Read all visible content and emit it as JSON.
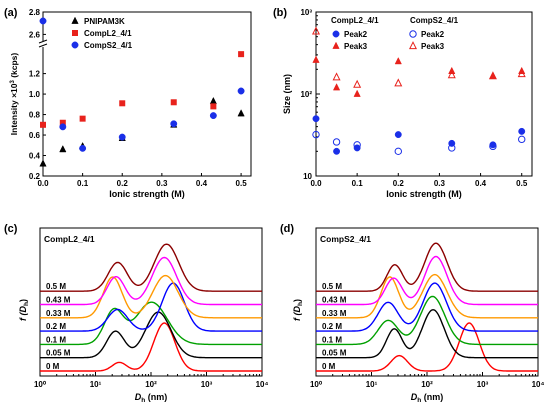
{
  "chart_data": [
    {
      "panel": "(a)",
      "type": "scatter",
      "xlabel": "Ionic strength (M)",
      "ylabel_main": "Intensity ×10",
      "ylabel_sup": "3",
      "ylabel_unit": " (kcps)",
      "x_ticks": [
        "0.0",
        "0.1",
        "0.2",
        "0.3",
        "0.4",
        "0.5"
      ],
      "x_tick_values": [
        0,
        0.1,
        0.2,
        0.3,
        0.4,
        0.5
      ],
      "y_ticks": [
        "0.2",
        "0.4",
        "0.6",
        "0.8",
        "1.0",
        "1.2",
        "2.6",
        "2.8"
      ],
      "xlim": [
        0,
        0.5
      ],
      "y_break": true,
      "legend_position": "top-left",
      "series": [
        {
          "name": "PNIPAM3K",
          "marker": "triangle",
          "color": "#000000",
          "x": [
            0,
            0.05,
            0.1,
            0.2,
            0.33,
            0.43,
            0.5
          ],
          "y": [
            0.32,
            0.46,
            0.49,
            0.57,
            0.7,
            0.93,
            0.81
          ]
        },
        {
          "name": "CompL2_4/1",
          "marker": "square",
          "color": "#e8221c",
          "x": [
            0,
            0.05,
            0.1,
            0.2,
            0.33,
            0.43,
            0.5
          ],
          "y": [
            0.7,
            0.72,
            0.76,
            0.91,
            0.92,
            0.88,
            1.39
          ]
        },
        {
          "name": "CompS2_4/1",
          "marker": "circle",
          "color": "#1a2fe8",
          "x": [
            0,
            0.05,
            0.1,
            0.2,
            0.33,
            0.43,
            0.5
          ],
          "y": [
            2.72,
            0.68,
            0.47,
            0.58,
            0.71,
            0.79,
            1.03
          ]
        }
      ]
    },
    {
      "panel": "(b)",
      "type": "scatter",
      "xlabel": "Ionic strength (M)",
      "ylabel": "Size (nm)",
      "y_scale": "log",
      "ylim": [
        10,
        1000
      ],
      "xlim": [
        0,
        0.5
      ],
      "x_ticks": [
        "0.0",
        "0.1",
        "0.2",
        "0.3",
        "0.4",
        "0.5"
      ],
      "y_ticks": [
        "10",
        "10²",
        "10³"
      ],
      "legend_position": "top-left",
      "legend_groups": [
        "CompL2_4/1",
        "CompS2_4/1"
      ],
      "series": [
        {
          "name": "Peak2",
          "group": "CompL2_4/1",
          "marker": "filled-circle",
          "color": "#1a2fe8",
          "x": [
            0,
            0.05,
            0.1,
            0.2,
            0.33,
            0.43,
            0.5
          ],
          "y": [
            50,
            20,
            22,
            32,
            25,
            24,
            35
          ]
        },
        {
          "name": "Peak3",
          "group": "CompL2_4/1",
          "marker": "filled-triangle",
          "color": "#e8221c",
          "x": [
            0,
            0.05,
            0.1,
            0.2,
            0.33,
            0.43,
            0.5
          ],
          "y": [
            260,
            120,
            100,
            250,
            190,
            165,
            190
          ]
        },
        {
          "name": "Peak2",
          "group": "CompS2_4/1",
          "marker": "open-circle",
          "color": "#1a2fe8",
          "x": [
            0,
            0.05,
            0.1,
            0.2,
            0.33,
            0.43,
            0.5
          ],
          "y": [
            32,
            26,
            24,
            20,
            22,
            23,
            28
          ]
        },
        {
          "name": "Peak3",
          "group": "CompS2_4/1",
          "marker": "open-triangle",
          "color": "#e8221c",
          "x": [
            0,
            0.05,
            0.1,
            0.2,
            0.33,
            0.43,
            0.5
          ],
          "y": [
            580,
            160,
            130,
            135,
            170,
            165,
            175
          ]
        }
      ]
    },
    {
      "panel": "(c)",
      "type": "line",
      "title": "CompL2_4/1",
      "xlabel_main": "D",
      "xlabel_sub": "h",
      "xlabel_unit": " (nm)",
      "ylabel_main": "f (D",
      "ylabel_sub": "h",
      "ylabel_close": ")",
      "x_scale": "log",
      "xlim": [
        1,
        10000
      ],
      "x_ticks": [
        "10⁰",
        "10¹",
        "10²",
        "10³",
        "10⁴"
      ],
      "series": [
        {
          "name": "0 M",
          "color": "#ff0000",
          "peaks": [
            {
              "center": 1.43,
              "width": 0.13,
              "height": 0.18
            },
            {
              "center": 2.24,
              "width": 0.19,
              "height": 1.0
            }
          ]
        },
        {
          "name": "0.05 M",
          "color": "#000000",
          "peaks": [
            {
              "center": 1.36,
              "width": 0.16,
              "height": 0.55
            },
            {
              "center": 2.13,
              "width": 0.23,
              "height": 0.95
            }
          ]
        },
        {
          "name": "0.1 M",
          "color": "#00a000",
          "peaks": [
            {
              "center": 1.33,
              "width": 0.17,
              "height": 0.7
            },
            {
              "center": 2.01,
              "width": 0.28,
              "height": 0.88
            }
          ]
        },
        {
          "name": "0.2 M",
          "color": "#0000ff",
          "peaks": [
            {
              "center": 1.4,
              "width": 0.18,
              "height": 0.45
            },
            {
              "center": 2.4,
              "width": 0.2,
              "height": 1.0
            }
          ]
        },
        {
          "name": "0.33 M",
          "color": "#ff9900",
          "peaks": [
            {
              "center": 1.31,
              "width": 0.17,
              "height": 0.85
            },
            {
              "center": 2.26,
              "width": 0.23,
              "height": 0.88
            }
          ]
        },
        {
          "name": "0.43 M",
          "color": "#ff00ff",
          "peaks": [
            {
              "center": 1.37,
              "width": 0.16,
              "height": 0.58
            },
            {
              "center": 2.24,
              "width": 0.22,
              "height": 0.98
            }
          ]
        },
        {
          "name": "0.5 M",
          "color": "#8b0000",
          "peaks": [
            {
              "center": 1.4,
              "width": 0.17,
              "height": 0.6
            },
            {
              "center": 2.28,
              "width": 0.22,
              "height": 0.98
            }
          ]
        }
      ]
    },
    {
      "panel": "(d)",
      "type": "line",
      "title": "CompS2_4/1",
      "xlabel_main": "D",
      "xlabel_sub": "h",
      "xlabel_unit": " (nm)",
      "ylabel_main": "f (D",
      "ylabel_sub": "h",
      "ylabel_close": ")",
      "x_scale": "log",
      "xlim": [
        1,
        10000
      ],
      "x_ticks": [
        "10⁰",
        "10¹",
        "10²",
        "10³",
        "10⁴"
      ],
      "series": [
        {
          "name": "0 M",
          "color": "#ff0000",
          "peaks": [
            {
              "center": 1.5,
              "width": 0.15,
              "height": 0.32
            },
            {
              "center": 2.76,
              "width": 0.18,
              "height": 1.0
            }
          ]
        },
        {
          "name": "0.05 M",
          "color": "#000000",
          "peaks": [
            {
              "center": 1.41,
              "width": 0.14,
              "height": 0.6
            },
            {
              "center": 2.11,
              "width": 0.2,
              "height": 1.0
            }
          ]
        },
        {
          "name": "0.1 M",
          "color": "#00a000",
          "peaks": [
            {
              "center": 1.3,
              "width": 0.18,
              "height": 0.5
            },
            {
              "center": 2.1,
              "width": 0.22,
              "height": 1.0
            }
          ]
        },
        {
          "name": "0.2 M",
          "color": "#0000ff",
          "peaks": [
            {
              "center": 1.3,
              "width": 0.18,
              "height": 0.6
            },
            {
              "center": 2.14,
              "width": 0.21,
              "height": 1.0
            }
          ]
        },
        {
          "name": "0.33 M",
          "color": "#ff9900",
          "peaks": [
            {
              "center": 1.33,
              "width": 0.16,
              "height": 0.85
            },
            {
              "center": 2.14,
              "width": 0.22,
              "height": 0.9
            }
          ]
        },
        {
          "name": "0.43 M",
          "color": "#ff00ff",
          "peaks": [
            {
              "center": 1.4,
              "width": 0.15,
              "height": 0.55
            },
            {
              "center": 2.16,
              "width": 0.2,
              "height": 1.0
            }
          ]
        },
        {
          "name": "0.5 M",
          "color": "#8b0000",
          "peaks": [
            {
              "center": 1.42,
              "width": 0.14,
              "height": 0.55
            },
            {
              "center": 2.16,
              "width": 0.2,
              "height": 1.0
            }
          ]
        }
      ]
    }
  ]
}
